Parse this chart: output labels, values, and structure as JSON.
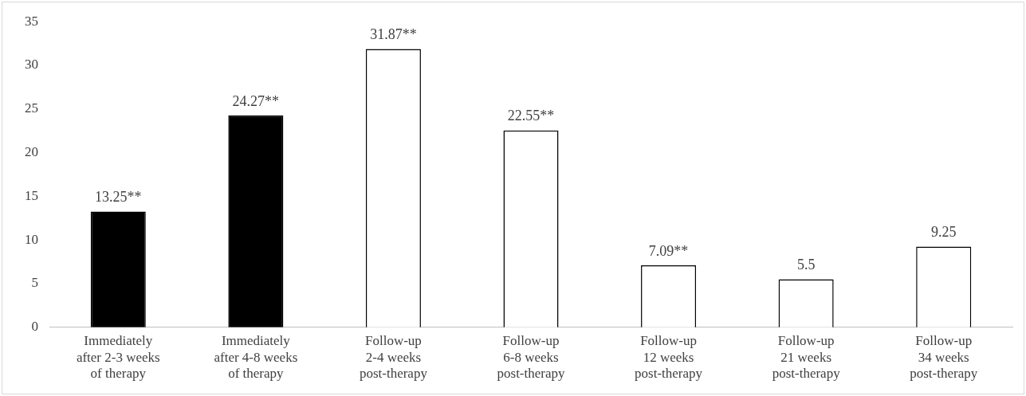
{
  "chart_data": {
    "type": "bar",
    "categories": [
      "Immediately\nafter 2-3 weeks\nof therapy",
      "Immediately\nafter 4-8 weeks\nof therapy",
      "Follow-up\n2-4 weeks\npost-therapy",
      "Follow-up\n6-8 weeks\npost-therapy",
      "Follow-up\n12 weeks\npost-therapy",
      "Follow-up\n21 weeks\npost-therapy",
      "Follow-up\n34 weeks\npost-therapy"
    ],
    "values": [
      13.25,
      24.27,
      31.87,
      22.55,
      7.09,
      5.5,
      9.25
    ],
    "colors": [
      "#000000",
      "#000000",
      "#ffffff",
      "#ffffff",
      "#ffffff",
      "#ffffff",
      "#ffffff"
    ],
    "value_labels": [
      "13.25**",
      "24.27**",
      "31.87**",
      "22.55**",
      "7.09**",
      "5.5",
      "9.25"
    ],
    "ylim": [
      0,
      35
    ],
    "yticks": [
      0,
      5,
      10,
      15,
      20,
      25,
      30,
      35
    ],
    "grid": false,
    "legend": false
  }
}
